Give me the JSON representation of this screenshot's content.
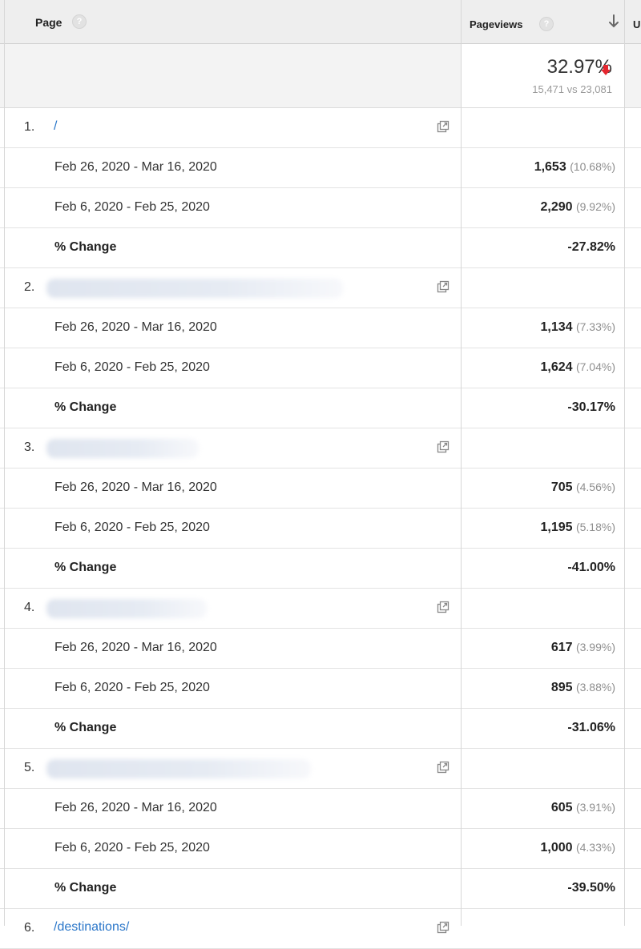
{
  "header": {
    "page_label": "Page",
    "help_glyph": "?",
    "pageviews_label": "Pageviews",
    "next_col_label": "U",
    "sort_icon": "arrow-down-icon"
  },
  "summary": {
    "percent": "32.97%",
    "trend_icon": "red-down-arrow-icon",
    "comparison": "15,471 vs 23,081"
  },
  "groups": [
    {
      "rank": "1.",
      "page": "/",
      "page_blurred": false,
      "current": {
        "range": "Feb 26, 2020 - Mar 16, 2020",
        "value": "1,653",
        "share": "(10.68%)"
      },
      "previous": {
        "range": "Feb 6, 2020 - Feb 25, 2020",
        "value": "2,290",
        "share": "(9.92%)"
      },
      "change": {
        "label": "% Change",
        "value": "-27.82%"
      }
    },
    {
      "rank": "2.",
      "page": "",
      "page_blurred": true,
      "current": {
        "range": "Feb 26, 2020 - Mar 16, 2020",
        "value": "1,134",
        "share": "(7.33%)"
      },
      "previous": {
        "range": "Feb 6, 2020 - Feb 25, 2020",
        "value": "1,624",
        "share": "(7.04%)"
      },
      "change": {
        "label": "% Change",
        "value": "-30.17%"
      }
    },
    {
      "rank": "3.",
      "page": "",
      "page_blurred": true,
      "current": {
        "range": "Feb 26, 2020 - Mar 16, 2020",
        "value": "705",
        "share": "(4.56%)"
      },
      "previous": {
        "range": "Feb 6, 2020 - Feb 25, 2020",
        "value": "1,195",
        "share": "(5.18%)"
      },
      "change": {
        "label": "% Change",
        "value": "-41.00%"
      }
    },
    {
      "rank": "4.",
      "page": "",
      "page_blurred": true,
      "current": {
        "range": "Feb 26, 2020 - Mar 16, 2020",
        "value": "617",
        "share": "(3.99%)"
      },
      "previous": {
        "range": "Feb 6, 2020 - Feb 25, 2020",
        "value": "895",
        "share": "(3.88%)"
      },
      "change": {
        "label": "% Change",
        "value": "-31.06%"
      }
    },
    {
      "rank": "5.",
      "page": "",
      "page_blurred": true,
      "current": {
        "range": "Feb 26, 2020 - Mar 16, 2020",
        "value": "605",
        "share": "(3.91%)"
      },
      "previous": {
        "range": "Feb 6, 2020 - Feb 25, 2020",
        "value": "1,000",
        "share": "(4.33%)"
      },
      "change": {
        "label": "% Change",
        "value": "-39.50%"
      }
    },
    {
      "rank": "6.",
      "page": "/destinations/",
      "page_blurred": false,
      "partial": true
    }
  ],
  "colors": {
    "link": "#2a76c9",
    "down_arrow": "#e5262f",
    "header_bg": "#eeeeee"
  }
}
